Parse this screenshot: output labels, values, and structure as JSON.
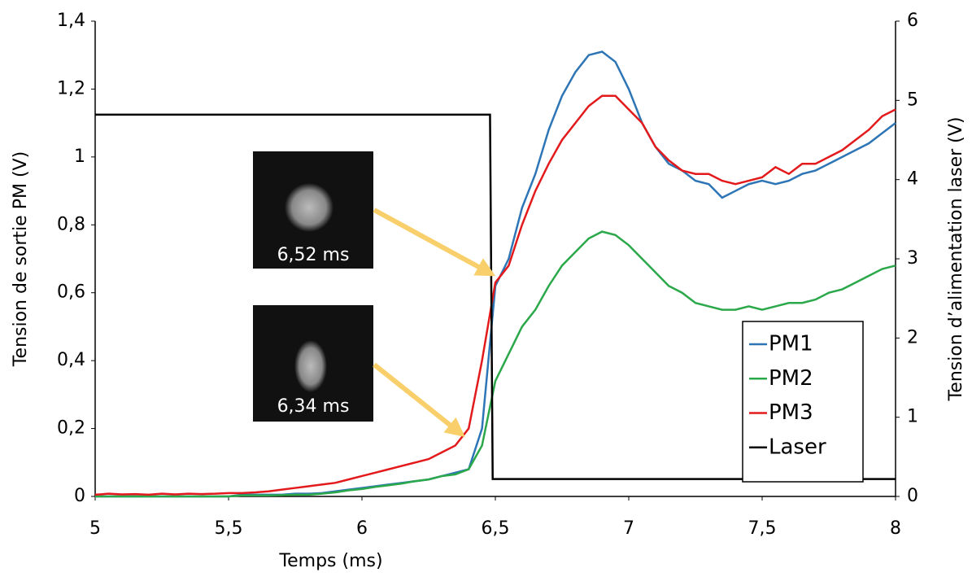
{
  "chart_data": {
    "type": "line",
    "xlabel": "Temps (ms)",
    "ylabel": "Tension de sortie PM (V)",
    "y2label": "Tension d’alimentation laser (V)",
    "x": [
      5,
      5.05,
      5.1,
      5.15,
      5.2,
      5.25,
      5.3,
      5.35,
      5.4,
      5.45,
      5.5,
      5.55,
      5.6,
      5.65,
      5.7,
      5.75,
      5.8,
      5.85,
      5.9,
      5.95,
      6,
      6.05,
      6.1,
      6.15,
      6.2,
      6.25,
      6.3,
      6.35,
      6.4,
      6.45,
      6.5,
      6.55,
      6.6,
      6.65,
      6.7,
      6.75,
      6.8,
      6.85,
      6.9,
      6.95,
      7,
      7.05,
      7.1,
      7.15,
      7.2,
      7.25,
      7.3,
      7.35,
      7.4,
      7.45,
      7.5,
      7.55,
      7.6,
      7.65,
      7.7,
      7.75,
      7.8,
      7.85,
      7.9,
      7.95,
      8
    ],
    "series": [
      {
        "name": "PM1",
        "color": "#2e75b6",
        "values": [
          0,
          0,
          0,
          0,
          0,
          0,
          0,
          0,
          0,
          0,
          0,
          0.005,
          0.005,
          0.005,
          0.005,
          0.008,
          0.008,
          0.01,
          0.015,
          0.02,
          0.025,
          0.03,
          0.035,
          0.04,
          0.045,
          0.05,
          0.06,
          0.07,
          0.08,
          0.2,
          0.62,
          0.7,
          0.85,
          0.95,
          1.08,
          1.18,
          1.25,
          1.3,
          1.31,
          1.28,
          1.2,
          1.1,
          1.03,
          0.98,
          0.96,
          0.93,
          0.92,
          0.88,
          0.9,
          0.92,
          0.93,
          0.92,
          0.93,
          0.95,
          0.96,
          0.98,
          1.0,
          1.02,
          1.04,
          1.07,
          1.1
        ]
      },
      {
        "name": "PM2",
        "color": "#2ba84a",
        "values": [
          0,
          0,
          0,
          0,
          0,
          0,
          0,
          0,
          0,
          0,
          0,
          0.003,
          0.003,
          0.003,
          0.004,
          0.005,
          0.005,
          0.008,
          0.012,
          0.018,
          0.022,
          0.028,
          0.033,
          0.038,
          0.045,
          0.05,
          0.06,
          0.065,
          0.08,
          0.15,
          0.34,
          0.42,
          0.5,
          0.55,
          0.62,
          0.68,
          0.72,
          0.76,
          0.78,
          0.77,
          0.74,
          0.7,
          0.66,
          0.62,
          0.6,
          0.57,
          0.56,
          0.55,
          0.55,
          0.56,
          0.55,
          0.56,
          0.57,
          0.57,
          0.58,
          0.6,
          0.61,
          0.63,
          0.65,
          0.67,
          0.68
        ]
      },
      {
        "name": "PM3",
        "color": "#e31a1c",
        "values": [
          0.005,
          0.008,
          0.006,
          0.007,
          0.005,
          0.008,
          0.006,
          0.008,
          0.007,
          0.008,
          0.01,
          0.01,
          0.012,
          0.015,
          0.02,
          0.025,
          0.03,
          0.035,
          0.04,
          0.05,
          0.06,
          0.07,
          0.08,
          0.09,
          0.1,
          0.11,
          0.13,
          0.15,
          0.2,
          0.4,
          0.63,
          0.68,
          0.8,
          0.9,
          0.98,
          1.05,
          1.1,
          1.15,
          1.18,
          1.18,
          1.14,
          1.1,
          1.03,
          0.99,
          0.96,
          0.95,
          0.95,
          0.93,
          0.92,
          0.93,
          0.94,
          0.97,
          0.95,
          0.98,
          0.98,
          1.0,
          1.02,
          1.05,
          1.08,
          1.12,
          1.14
        ]
      },
      {
        "name": "Laser",
        "color": "#000000",
        "axis": "y2",
        "x": [
          5,
          6.48,
          6.49,
          8
        ],
        "values": [
          4.82,
          4.82,
          0.22,
          0.22
        ]
      }
    ],
    "xlim": [
      5,
      8
    ],
    "xticks": [
      5,
      {
        "value": 5.5,
        "label": "5,5"
      },
      6,
      {
        "value": 6.5,
        "label": "6,5"
      },
      7,
      {
        "value": 7.5,
        "label": "7,5"
      },
      8
    ],
    "ylim": [
      0,
      1.4
    ],
    "yticks": [
      0,
      {
        "value": 0.2,
        "label": "0,2"
      },
      {
        "value": 0.4,
        "label": "0,4"
      },
      {
        "value": 0.6,
        "label": "0,6"
      },
      {
        "value": 0.8,
        "label": "0,8"
      },
      1,
      {
        "value": 1.2,
        "label": "1,2"
      },
      {
        "value": 1.4,
        "label": "1,4"
      }
    ],
    "y2lim": [
      0,
      6
    ],
    "y2ticks": [
      0,
      1,
      2,
      3,
      4,
      5,
      6
    ],
    "legend": "lower right",
    "annotations": [
      "6,52 ms",
      "6,34 ms"
    ]
  }
}
